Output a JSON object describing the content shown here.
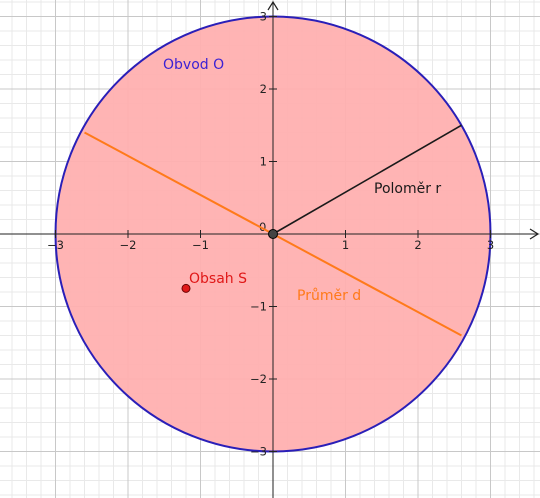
{
  "graph": {
    "x_axis": {
      "min": -3,
      "max": 3,
      "ticks": [
        {
          "value": -3,
          "label": "−3"
        },
        {
          "value": -2,
          "label": "−2"
        },
        {
          "value": -1,
          "label": "−1"
        },
        {
          "value": 0,
          "label": "0"
        },
        {
          "value": 1,
          "label": "1"
        },
        {
          "value": 2,
          "label": "2"
        },
        {
          "value": 3,
          "label": "3"
        }
      ]
    },
    "y_axis": {
      "min": -3,
      "max": 3,
      "ticks": [
        {
          "value": 3,
          "label": "3"
        },
        {
          "value": 2,
          "label": "2"
        },
        {
          "value": 1,
          "label": "1"
        },
        {
          "value": -1,
          "label": "−1"
        },
        {
          "value": -2,
          "label": "−2"
        },
        {
          "value": -3,
          "label": "−3"
        }
      ]
    },
    "circle": {
      "center": [
        0,
        0
      ],
      "radius": 3,
      "stroke_color": "#2a1fb8",
      "fill_color": "#ffb0b0"
    },
    "radius_segment": {
      "from": [
        0,
        0
      ],
      "to": [
        2.6,
        1.5
      ],
      "color": "#1a1a1a"
    },
    "diameter_segment": {
      "from": [
        -2.6,
        1.4
      ],
      "to": [
        2.6,
        -1.4
      ],
      "color": "#ff7a1a"
    },
    "center_point": {
      "x": 0,
      "y": 0,
      "color": "#444444"
    },
    "area_point": {
      "x": -1.2,
      "y": -0.75,
      "color": "#e01818"
    },
    "labels": {
      "circumference": {
        "text": "Obvod O",
        "color": "#3c22d4"
      },
      "radius": {
        "text": "Poloměr r",
        "color": "#1a1a1a"
      },
      "diameter": {
        "text": "Průměr d",
        "color": "#ff7a1a"
      },
      "area": {
        "text": "Obsah S",
        "color": "#e01818"
      }
    }
  }
}
